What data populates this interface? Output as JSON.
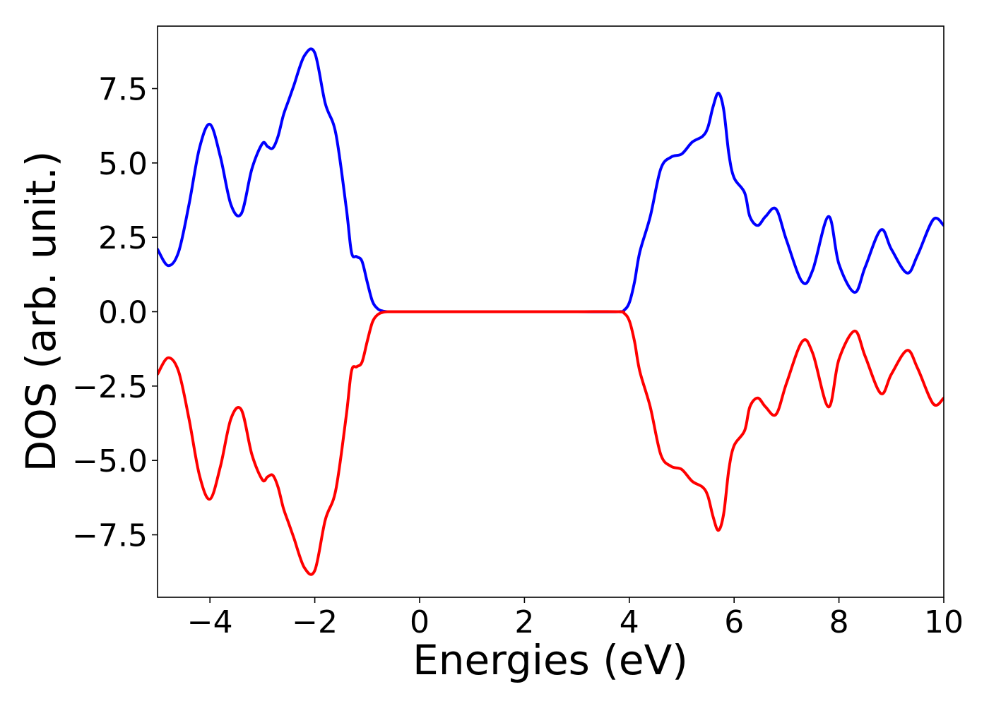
{
  "chart_data": {
    "type": "line",
    "title": "",
    "xlabel": "Energies (eV)",
    "ylabel": "DOS (arb. unit.)",
    "xlim": [
      -5,
      10
    ],
    "ylim": [
      -9.6,
      9.6
    ],
    "xticks": [
      -4,
      -2,
      0,
      2,
      4,
      6,
      8,
      10
    ],
    "xtick_labels": [
      "−4",
      "−2",
      "0",
      "2",
      "4",
      "6",
      "8",
      "10"
    ],
    "yticks": [
      7.5,
      5.0,
      2.5,
      0.0,
      -2.5,
      -5.0,
      -7.5
    ],
    "ytick_labels": [
      "7.5",
      "5.0",
      "2.5",
      "0.0",
      "−2.5",
      "−5.0",
      "−7.5"
    ],
    "grid": false,
    "legend": "none",
    "series": [
      {
        "color": "#0000ff",
        "x": [
          -5.0,
          -4.8,
          -4.6,
          -4.4,
          -4.2,
          -4.0,
          -3.8,
          -3.6,
          -3.4,
          -3.2,
          -3.0,
          -2.9,
          -2.8,
          -2.7,
          -2.6,
          -2.5,
          -2.4,
          -2.2,
          -2.0,
          -1.8,
          -1.6,
          -1.4,
          -1.3,
          -1.2,
          -1.1,
          -1.0,
          -0.9,
          -0.8,
          -0.7,
          -0.6,
          -0.5,
          0.0,
          1.0,
          2.0,
          3.0,
          3.8,
          3.9,
          4.0,
          4.1,
          4.2,
          4.4,
          4.6,
          4.8,
          5.0,
          5.2,
          5.4,
          5.5,
          5.6,
          5.7,
          5.8,
          5.9,
          6.0,
          6.2,
          6.3,
          6.45,
          6.6,
          6.8,
          7.0,
          7.3,
          7.5,
          7.8,
          8.0,
          8.3,
          8.5,
          8.8,
          9.0,
          9.3,
          9.5,
          9.8,
          10.0
        ],
        "y": [
          2.1,
          1.55,
          2.0,
          3.6,
          5.5,
          6.3,
          5.2,
          3.6,
          3.3,
          4.8,
          5.65,
          5.55,
          5.5,
          5.9,
          6.6,
          7.1,
          7.6,
          8.6,
          8.7,
          7.0,
          6.0,
          3.5,
          2.0,
          1.85,
          1.7,
          1.0,
          0.35,
          0.1,
          0.02,
          0.0,
          0.0,
          0.0,
          0.0,
          0.0,
          0.0,
          0.0,
          0.05,
          0.3,
          1.0,
          2.0,
          3.2,
          4.8,
          5.2,
          5.3,
          5.7,
          5.9,
          6.2,
          6.9,
          7.35,
          6.8,
          5.3,
          4.5,
          4.0,
          3.2,
          2.9,
          3.2,
          3.45,
          2.4,
          1.0,
          1.4,
          3.2,
          1.6,
          0.65,
          1.5,
          2.75,
          2.1,
          1.3,
          1.9,
          3.1,
          2.9
        ]
      },
      {
        "color": "#ff0000",
        "x": [
          -5.0,
          -4.8,
          -4.6,
          -4.4,
          -4.2,
          -4.0,
          -3.8,
          -3.6,
          -3.4,
          -3.2,
          -3.0,
          -2.9,
          -2.8,
          -2.7,
          -2.6,
          -2.5,
          -2.4,
          -2.2,
          -2.0,
          -1.8,
          -1.6,
          -1.4,
          -1.3,
          -1.2,
          -1.1,
          -1.0,
          -0.9,
          -0.8,
          -0.7,
          -0.6,
          -0.5,
          0.0,
          1.0,
          2.0,
          3.0,
          3.8,
          3.9,
          4.0,
          4.1,
          4.2,
          4.4,
          4.6,
          4.8,
          5.0,
          5.2,
          5.4,
          5.5,
          5.6,
          5.7,
          5.8,
          5.9,
          6.0,
          6.2,
          6.3,
          6.45,
          6.6,
          6.8,
          7.0,
          7.3,
          7.5,
          7.8,
          8.0,
          8.3,
          8.5,
          8.8,
          9.0,
          9.3,
          9.5,
          9.8,
          10.0
        ],
        "y": [
          -2.1,
          -1.55,
          -2.0,
          -3.6,
          -5.5,
          -6.3,
          -5.2,
          -3.6,
          -3.3,
          -4.8,
          -5.65,
          -5.55,
          -5.5,
          -5.9,
          -6.6,
          -7.1,
          -7.6,
          -8.6,
          -8.7,
          -7.0,
          -6.0,
          -3.5,
          -2.0,
          -1.85,
          -1.7,
          -1.0,
          -0.35,
          -0.1,
          -0.02,
          0.0,
          0.0,
          0.0,
          0.0,
          0.0,
          0.0,
          0.0,
          -0.05,
          -0.3,
          -1.0,
          -2.0,
          -3.2,
          -4.8,
          -5.2,
          -5.3,
          -5.7,
          -5.9,
          -6.2,
          -6.9,
          -7.35,
          -6.8,
          -5.3,
          -4.5,
          -4.0,
          -3.2,
          -2.9,
          -3.2,
          -3.45,
          -2.4,
          -1.0,
          -1.4,
          -3.2,
          -1.6,
          -0.65,
          -1.5,
          -2.75,
          -2.1,
          -1.3,
          -1.9,
          -3.1,
          -2.9
        ]
      }
    ]
  }
}
